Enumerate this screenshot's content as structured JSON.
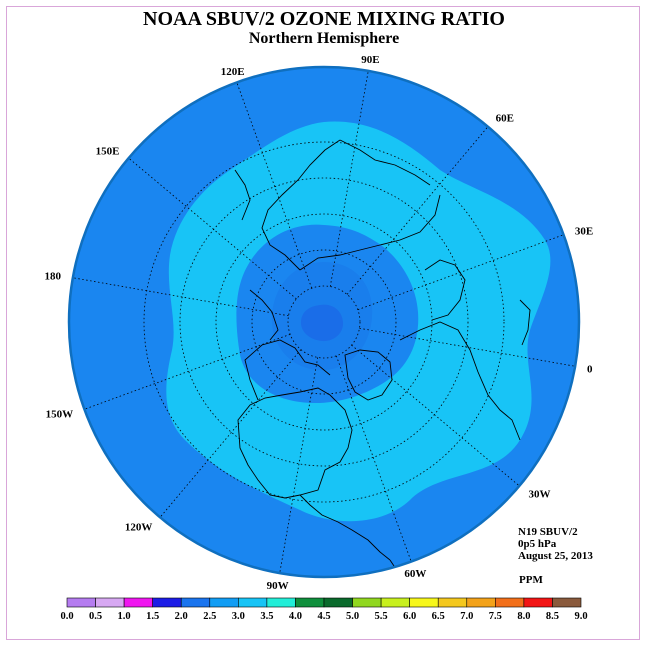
{
  "title": "NOAA SBUV/2 OZONE MIXING RATIO",
  "subtitle": "Northern Hemisphere",
  "info": {
    "satellite": "N19 SBUV/2",
    "level": "0p5 hPa",
    "date": "August 25, 2013",
    "units": "PPM"
  },
  "longitude_labels": [
    "90E",
    "60E",
    "30E",
    "0",
    "30W",
    "60W",
    "90W",
    "120W",
    "150W",
    "180",
    "150E",
    "120E"
  ],
  "colorbar": {
    "ticks": [
      "0.0",
      "0.5",
      "1.0",
      "1.5",
      "2.0",
      "2.5",
      "3.0",
      "3.5",
      "4.0",
      "4.5",
      "5.0",
      "5.5",
      "6.0",
      "6.5",
      "7.0",
      "7.5",
      "8.0",
      "8.5",
      "9.0"
    ],
    "colors": [
      "#b57cf0",
      "#d7a8f2",
      "#ef16ef",
      "#1c1ce6",
      "#1a74ee",
      "#119df4",
      "#18c4f6",
      "#22eed8",
      "#0f8f3c",
      "#0a6a2c",
      "#91d71f",
      "#c8f01e",
      "#f7f71b",
      "#f4c81e",
      "#f3a21a",
      "#f26f1a",
      "#f21515",
      "#8a5a3c"
    ]
  },
  "map_colors": {
    "level_2_5": "#1a86f0",
    "level_3_0": "#18c4f6",
    "level_2_0_polar": "#1c5fe6",
    "rim": "#0f6fbf"
  }
}
